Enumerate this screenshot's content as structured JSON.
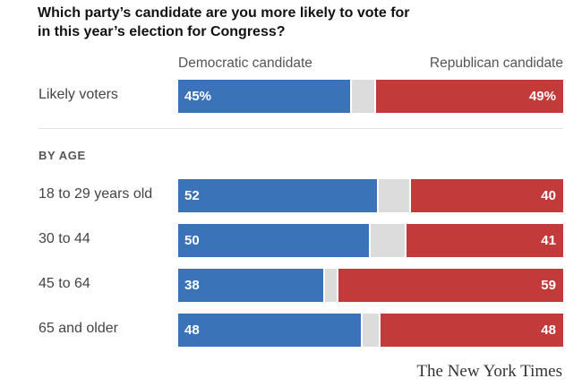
{
  "chart_data": {
    "type": "bar",
    "stacked": true,
    "orientation": "horizontal",
    "title": "Which party’s candidate are you more likely to vote for in this year’s election for Congress?",
    "legend": [
      "Democratic candidate",
      "Republican candidate"
    ],
    "section_label": "BY AGE",
    "categories": [
      "Likely voters",
      "18 to 29 years old",
      "30 to 44",
      "45 to 64",
      "65 and older"
    ],
    "series": [
      {
        "name": "Democratic candidate",
        "values": [
          45,
          52,
          50,
          38,
          48
        ],
        "labels": [
          "45%",
          "52",
          "50",
          "38",
          "48"
        ]
      },
      {
        "name": "Republican candidate",
        "values": [
          49,
          40,
          41,
          59,
          48
        ],
        "labels": [
          "49%",
          "40",
          "41",
          "59",
          "48"
        ]
      }
    ],
    "xlim": [
      0,
      100
    ],
    "grid": false,
    "legend_position": "top"
  },
  "colors": {
    "democratic": "#3b73b9",
    "republican": "#c23b3a",
    "undecided": "#dcdcdc"
  },
  "credit": "The New York Times"
}
